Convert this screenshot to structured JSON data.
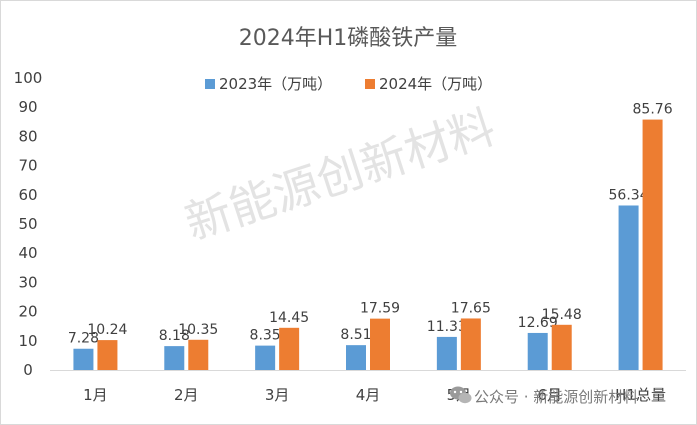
{
  "chart_data": {
    "type": "bar",
    "title": "2024年H1磷酸铁产量",
    "categories": [
      "1月",
      "2月",
      "3月",
      "4月",
      "5月",
      "6月",
      "H1总量"
    ],
    "series": [
      {
        "name": "2023年（万吨）",
        "color": "#5b9bd5",
        "values": [
          7.28,
          8.18,
          8.35,
          8.51,
          11.33,
          12.69,
          56.34
        ]
      },
      {
        "name": "2024年（万吨）",
        "color": "#ed7d31",
        "values": [
          10.24,
          10.35,
          14.45,
          17.59,
          17.65,
          15.48,
          85.76
        ]
      }
    ],
    "data_labels": [
      [
        "7.28",
        "8.18",
        "8.35",
        "8.51",
        "11.33",
        "12.69",
        "56.34"
      ],
      [
        "10.24",
        "10.35",
        "14.45",
        "17.59",
        "17.65",
        "15.48",
        "85.76"
      ]
    ],
    "ylim": [
      0,
      100
    ],
    "yticks": [
      "0",
      "10",
      "20",
      "30",
      "40",
      "50",
      "60",
      "70",
      "80",
      "90",
      "100"
    ],
    "xlabel": "",
    "ylabel": "",
    "grid": false,
    "legend_position": "top"
  },
  "watermark": {
    "text": "新能源创新材料"
  },
  "footer": {
    "icon": "wechat-icon",
    "text": "公众号 · 新能源创新材料"
  }
}
